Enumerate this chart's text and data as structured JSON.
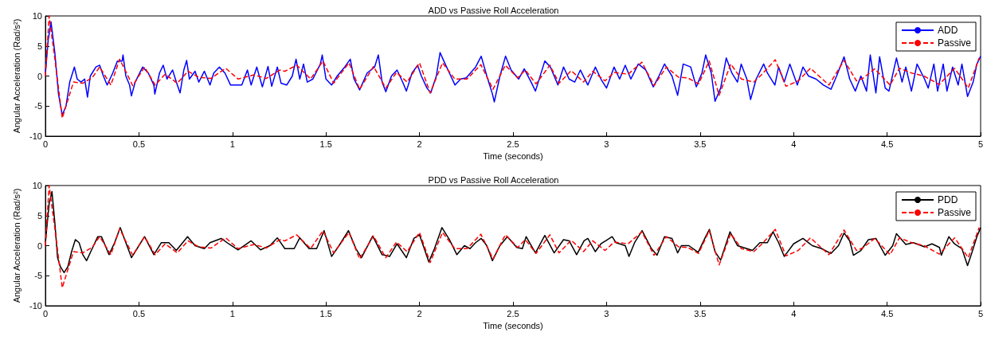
{
  "chart_data": [
    {
      "type": "line",
      "title": "ADD vs Passive Roll Acceleration",
      "xlabel": "Time (seconds)",
      "ylabel": "Angular Acceleration (Rad/s²)",
      "xlim": [
        0,
        5
      ],
      "xticks": [
        0,
        0.5,
        1,
        1.5,
        2,
        2.5,
        3,
        3.5,
        4,
        4.5,
        5
      ],
      "ylim": [
        -10,
        10
      ],
      "yticks": [
        -10,
        -5,
        0,
        5,
        10
      ],
      "grid": false,
      "legend": "top right",
      "marker": "none",
      "series": [
        {
          "name": "ADD",
          "color": "#0000ff",
          "line_style": "solid",
          "x": [
            0,
            0.015,
            0.03,
            0.05,
            0.07,
            0.09,
            0.11,
            0.13,
            0.155,
            0.17,
            0.19,
            0.21,
            0.225,
            0.24,
            0.27,
            0.29,
            0.31,
            0.33,
            0.36,
            0.385,
            0.41,
            0.415,
            0.43,
            0.45,
            0.46,
            0.48,
            0.52,
            0.55,
            0.58,
            0.585,
            0.61,
            0.63,
            0.65,
            0.68,
            0.7,
            0.72,
            0.74,
            0.755,
            0.77,
            0.8,
            0.82,
            0.85,
            0.88,
            0.9,
            0.93,
            0.96,
            0.99,
            1.02,
            1.05,
            1.08,
            1.1,
            1.13,
            1.16,
            1.19,
            1.21,
            1.24,
            1.26,
            1.29,
            1.32,
            1.34,
            1.36,
            1.38,
            1.4,
            1.43,
            1.47,
            1.48,
            1.5,
            1.53,
            1.56,
            1.6,
            1.63,
            1.65,
            1.68,
            1.72,
            1.76,
            1.78,
            1.8,
            1.82,
            1.85,
            1.88,
            1.91,
            1.93,
            1.96,
            1.99,
            2.01,
            2.04,
            2.06,
            2.09,
            2.11,
            2.13,
            2.16,
            2.19,
            2.22,
            2.25,
            2.3,
            2.33,
            2.36,
            2.39,
            2.4,
            2.43,
            2.46,
            2.49,
            2.53,
            2.56,
            2.6,
            2.62,
            2.67,
            2.7,
            2.74,
            2.77,
            2.8,
            2.83,
            2.86,
            2.9,
            2.94,
            2.97,
            3.0,
            3.04,
            3.07,
            3.1,
            3.13,
            3.17,
            3.21,
            3.25,
            3.28,
            3.31,
            3.35,
            3.38,
            3.41,
            3.45,
            3.48,
            3.51,
            3.53,
            3.56,
            3.58,
            3.61,
            3.64,
            3.67,
            3.7,
            3.72,
            3.75,
            3.77,
            3.8,
            3.84,
            3.86,
            3.9,
            3.92,
            3.95,
            3.98,
            4.02,
            4.05,
            4.08,
            4.12,
            4.16,
            4.2,
            4.23,
            4.27,
            4.3,
            4.33,
            4.36,
            4.39,
            4.41,
            4.44,
            4.46,
            4.49,
            4.51,
            4.55,
            4.58,
            4.6,
            4.63,
            4.66,
            4.7,
            4.72,
            4.75,
            4.77,
            4.8,
            4.82,
            4.85,
            4.88,
            4.9,
            4.93,
            4.96,
            4.98,
            5.0
          ],
          "values": [
            0.5,
            6,
            9,
            4,
            -3,
            -6.5,
            -5,
            -1,
            1.5,
            -0.5,
            -1,
            -0.5,
            -3.5,
            0,
            1.5,
            1.8,
            0,
            -1.5,
            0.5,
            2.5,
            2.5,
            3.5,
            0,
            -1.5,
            -3.3,
            -1,
            1.5,
            0.5,
            -1.5,
            -3,
            0.5,
            1.8,
            -0.5,
            1,
            -1,
            -2.8,
            1,
            2.6,
            -0.5,
            0.8,
            -1,
            0.8,
            -1.5,
            0.5,
            1.5,
            0.5,
            -1.5,
            -1.5,
            -1.5,
            1,
            -1.5,
            1.5,
            -1.8,
            1.6,
            -1.7,
            1.5,
            -1.2,
            -1.5,
            0,
            2.8,
            -0.5,
            2,
            -1,
            -0.5,
            2,
            3.5,
            -0.5,
            -1.5,
            0,
            1.5,
            2.8,
            -0.5,
            -2.3,
            0.5,
            1.5,
            3.5,
            -1,
            -2.6,
            0,
            1,
            -1,
            -2.5,
            0.5,
            1.8,
            0,
            -2,
            -2.8,
            0,
            3.9,
            2.5,
            0.5,
            -1.5,
            -0.5,
            -0.3,
            1.5,
            3.3,
            0,
            -3,
            -4.3,
            0,
            3.3,
            1,
            -0.5,
            1.2,
            -1.2,
            -2.5,
            2.5,
            1.5,
            -1.5,
            1.5,
            -0.5,
            -1,
            1,
            -1.5,
            1.5,
            -0.5,
            -2,
            1.5,
            -0.5,
            1.8,
            -0.5,
            2,
            1,
            -1.8,
            0,
            2,
            0,
            -3.2,
            2,
            1.5,
            -1.8,
            0.5,
            3.5,
            0.5,
            -4.2,
            -2,
            3,
            0.5,
            -1,
            2,
            -0.5,
            -3.9,
            -0.5,
            2,
            0.5,
            -1.5,
            1.5,
            -1,
            2,
            -1.5,
            1.5,
            0,
            -0.5,
            -1.5,
            -2.2,
            0,
            3.2,
            -0.5,
            -2.5,
            0,
            -2.5,
            3.5,
            -2.8,
            3.2,
            -2,
            -2.5,
            3,
            -1,
            1.5,
            -2.5,
            2,
            -0.5,
            -2,
            2,
            -2.5,
            2,
            -2.5,
            1.5,
            -1.5,
            2,
            -3.4,
            -1,
            2,
            3.3
          ]
        },
        {
          "name": "Passive",
          "color": "#ff0000",
          "line_style": "dashed",
          "x": [
            0,
            0.02,
            0.05,
            0.09,
            0.15,
            0.2,
            0.25,
            0.29,
            0.35,
            0.397,
            0.467,
            0.53,
            0.587,
            0.64,
            0.705,
            0.762,
            0.82,
            0.885,
            0.964,
            1.03,
            1.115,
            1.18,
            1.254,
            1.28,
            1.344,
            1.418,
            1.484,
            1.541,
            1.623,
            1.68,
            1.754,
            1.82,
            1.877,
            1.934,
            2.0,
            2.057,
            2.123,
            2.189,
            2.254,
            2.328,
            2.393,
            2.459,
            2.525,
            2.566,
            2.623,
            2.697,
            2.746,
            2.811,
            2.877,
            2.926,
            2.992,
            3.041,
            3.115,
            3.189,
            3.254,
            3.32,
            3.385,
            3.434,
            3.492,
            3.549,
            3.602,
            3.664,
            3.721,
            3.787,
            3.828,
            3.902,
            3.959,
            4.025,
            4.09,
            4.189,
            4.27,
            4.336,
            4.369,
            4.434,
            4.516,
            4.566,
            4.631,
            4.697,
            4.779,
            4.861,
            4.934,
            4.992
          ],
          "values": [
            0,
            10,
            3,
            -7,
            -1,
            -1.2,
            -0.3,
            1.5,
            -1.5,
            2.8,
            -1.6,
            1.5,
            -1.5,
            0.3,
            -1.2,
            0.8,
            -0.2,
            -0.4,
            1.3,
            -0.5,
            0.2,
            -0.4,
            1,
            0.8,
            1.8,
            -0.5,
            2.5,
            -1.2,
            2.2,
            -2.2,
            1.6,
            -2,
            0.6,
            -1,
            2.2,
            -2.8,
            2.2,
            -0.5,
            -0.5,
            1.9,
            -2.2,
            1.8,
            -0.3,
            1,
            -1.3,
            1.8,
            -1.2,
            0.9,
            -1,
            0.8,
            -0.8,
            0.6,
            0.3,
            2.3,
            -1.6,
            1.5,
            -0.2,
            -0.3,
            -1.3,
            2.5,
            -3.2,
            2,
            -0.5,
            -1,
            0.2,
            2.7,
            -1.7,
            -0.8,
            1.3,
            -1.5,
            2.6,
            -0.8,
            -0.4,
            1.2,
            -1.5,
            1.3,
            0.5,
            0,
            -1.4,
            1.3,
            -2,
            3
          ]
        }
      ]
    },
    {
      "type": "line",
      "title": "PDD vs Passive Roll Acceleration",
      "xlabel": "Time (seconds)",
      "ylabel": "Angular Acceleration (Rad/s²)",
      "xlim": [
        0,
        5
      ],
      "xticks": [
        0,
        0.5,
        1,
        1.5,
        2,
        2.5,
        3,
        3.5,
        4,
        4.5,
        5
      ],
      "ylim": [
        -10,
        10
      ],
      "yticks": [
        -10,
        -5,
        0,
        5,
        10
      ],
      "grid": false,
      "legend": "top right",
      "marker": "none",
      "series": [
        {
          "name": "PDD",
          "color": "#000000",
          "line_style": "solid",
          "x": [
            0,
            0.02,
            0.035,
            0.05,
            0.065,
            0.08,
            0.1,
            0.12,
            0.14,
            0.16,
            0.18,
            0.2,
            0.22,
            0.25,
            0.28,
            0.3,
            0.34,
            0.37,
            0.4,
            0.43,
            0.46,
            0.5,
            0.53,
            0.58,
            0.62,
            0.66,
            0.7,
            0.76,
            0.8,
            0.85,
            0.88,
            0.94,
            0.98,
            1.03,
            1.1,
            1.15,
            1.2,
            1.24,
            1.28,
            1.33,
            1.36,
            1.41,
            1.45,
            1.49,
            1.53,
            1.57,
            1.62,
            1.66,
            1.69,
            1.75,
            1.8,
            1.84,
            1.88,
            1.93,
            1.97,
            2.0,
            2.02,
            2.05,
            2.08,
            2.12,
            2.16,
            2.2,
            2.24,
            2.27,
            2.3,
            2.33,
            2.36,
            2.39,
            2.43,
            2.47,
            2.52,
            2.55,
            2.57,
            2.62,
            2.67,
            2.72,
            2.77,
            2.8,
            2.84,
            2.88,
            2.9,
            2.94,
            2.97,
            3.03,
            3.05,
            3.1,
            3.12,
            3.15,
            3.19,
            3.24,
            3.27,
            3.31,
            3.35,
            3.38,
            3.4,
            3.44,
            3.49,
            3.53,
            3.55,
            3.58,
            3.61,
            3.66,
            3.7,
            3.75,
            3.78,
            3.82,
            3.86,
            3.89,
            3.92,
            3.95,
            4.0,
            4.05,
            4.1,
            4.15,
            4.2,
            4.24,
            4.27,
            4.3,
            4.32,
            4.36,
            4.4,
            4.44,
            4.49,
            4.53,
            4.55,
            4.6,
            4.64,
            4.7,
            4.74,
            4.78,
            4.79,
            4.83,
            4.86,
            4.9,
            4.93,
            4.95,
            4.98,
            5.0
          ],
          "values": [
            0.5,
            7,
            9,
            4,
            -2,
            -3.5,
            -4.5,
            -3.5,
            -1,
            1,
            0.5,
            -1.5,
            -2.5,
            -0.5,
            1.5,
            1.5,
            -1.5,
            0.5,
            3,
            0.5,
            -2,
            0,
            1.5,
            -1.5,
            0.5,
            0.5,
            -0.8,
            1.5,
            0,
            -0.5,
            0.5,
            1.2,
            0.3,
            -0.7,
            0.8,
            -0.7,
            0,
            1.3,
            -0.5,
            -0.5,
            1.3,
            -0.5,
            -0.5,
            2.5,
            -1.8,
            0,
            2.5,
            -0.5,
            -2,
            1.6,
            -1.5,
            -1.8,
            0.3,
            -2,
            1.2,
            1.8,
            0,
            -2.7,
            -0.5,
            3,
            1,
            -1.5,
            0,
            -0.5,
            0.5,
            1.2,
            0,
            -2.5,
            0,
            1.5,
            -0.3,
            -0.5,
            1.5,
            -1.2,
            1.7,
            -1.2,
            1,
            0.8,
            -1.5,
            0.8,
            1.2,
            -1,
            0.3,
            1.5,
            0.5,
            0,
            -1.8,
            0.5,
            2.5,
            -0.5,
            -1.6,
            1.5,
            1.2,
            -1.2,
            0,
            0,
            -1.1,
            1.5,
            2.7,
            -1,
            -2.4,
            2.3,
            0,
            -0.5,
            -0.8,
            0.5,
            0.5,
            2.3,
            0.5,
            -1.8,
            0.3,
            1.2,
            0,
            -0.5,
            -1.3,
            0,
            2.1,
            0.8,
            -1.6,
            -0.8,
            1,
            1.2,
            -1.6,
            0,
            2,
            0.2,
            0.5,
            -0.2,
            0.3,
            -0.3,
            -1.6,
            1.5,
            0.3,
            -0.5,
            -3.3,
            -1.5,
            1.5,
            3
          ]
        },
        {
          "name": "Passive",
          "color": "#ff0000",
          "line_style": "dashed",
          "x": [
            0,
            0.02,
            0.05,
            0.09,
            0.15,
            0.2,
            0.25,
            0.29,
            0.35,
            0.397,
            0.467,
            0.53,
            0.587,
            0.64,
            0.705,
            0.762,
            0.82,
            0.885,
            0.964,
            1.03,
            1.115,
            1.18,
            1.254,
            1.28,
            1.344,
            1.418,
            1.484,
            1.541,
            1.623,
            1.68,
            1.754,
            1.82,
            1.877,
            1.934,
            2.0,
            2.057,
            2.123,
            2.189,
            2.254,
            2.328,
            2.393,
            2.459,
            2.525,
            2.566,
            2.623,
            2.697,
            2.746,
            2.811,
            2.877,
            2.926,
            2.992,
            3.041,
            3.115,
            3.189,
            3.254,
            3.32,
            3.385,
            3.434,
            3.492,
            3.549,
            3.602,
            3.664,
            3.721,
            3.787,
            3.828,
            3.902,
            3.959,
            4.025,
            4.09,
            4.189,
            4.27,
            4.336,
            4.369,
            4.434,
            4.516,
            4.566,
            4.631,
            4.697,
            4.779,
            4.861,
            4.934,
            4.992
          ],
          "values": [
            0,
            10,
            3,
            -7,
            -1,
            -1.2,
            -0.3,
            1.5,
            -1.5,
            2.8,
            -1.6,
            1.5,
            -1.5,
            0.3,
            -1.2,
            0.8,
            -0.2,
            -0.4,
            1.3,
            -0.5,
            0.2,
            -0.4,
            1,
            0.8,
            1.8,
            -0.5,
            2.5,
            -1.2,
            2.2,
            -2.2,
            1.6,
            -2,
            0.6,
            -1,
            2.2,
            -2.8,
            2.2,
            -0.5,
            -0.5,
            1.9,
            -2.2,
            1.8,
            -0.3,
            1,
            -1.3,
            1.8,
            -1.2,
            0.9,
            -1,
            0.8,
            -0.8,
            0.6,
            0.3,
            2.3,
            -1.6,
            1.5,
            -0.2,
            -0.3,
            -1.3,
            2.5,
            -3.2,
            2,
            -0.5,
            -1,
            0.2,
            2.7,
            -1.7,
            -0.8,
            1.3,
            -1.5,
            2.6,
            -0.8,
            -0.4,
            1.2,
            -1.5,
            1.3,
            0.5,
            0,
            -1.4,
            1.3,
            -2,
            3
          ]
        }
      ]
    }
  ]
}
